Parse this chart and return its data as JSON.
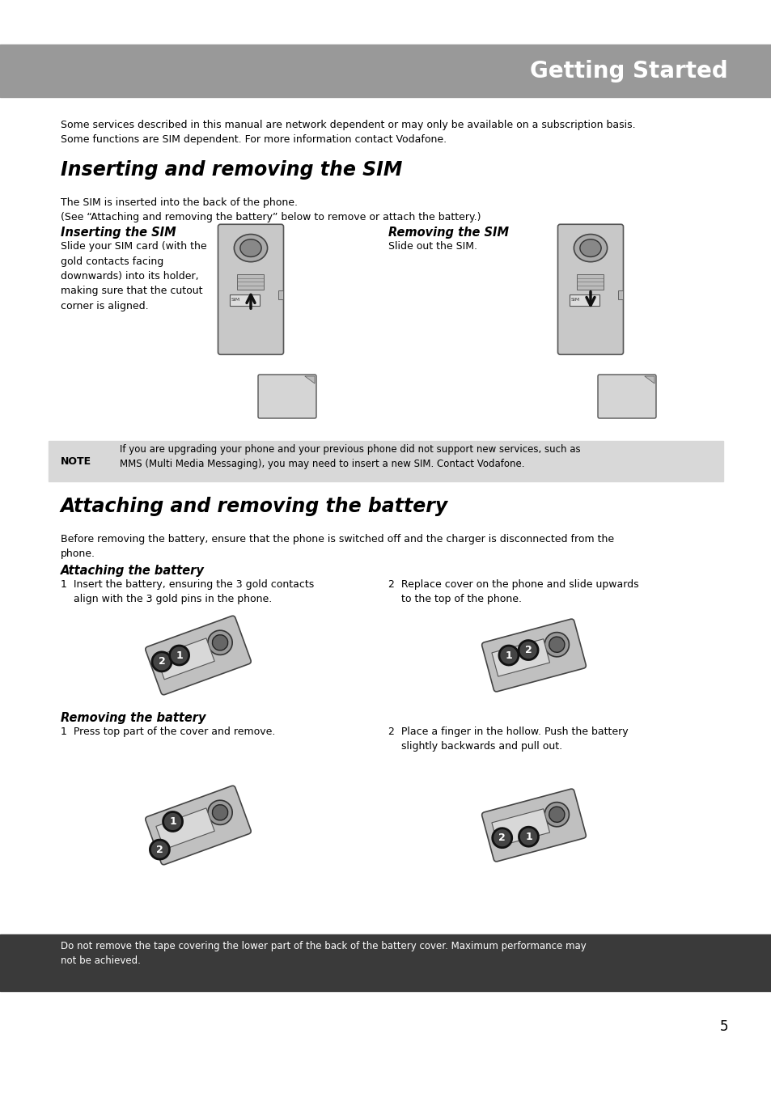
{
  "page_bg": "#ffffff",
  "header_bg": "#999999",
  "header_text": "Getting Started",
  "header_text_color": "#ffffff",
  "note_bg": "#d8d8d8",
  "footer_bg": "#3a3a3a",
  "footer_text_color": "#ffffff",
  "body_text_color": "#000000",
  "page_number": "5",
  "intro_text": "Some services described in this manual are network dependent or may only be available on a subscription basis.\nSome functions are SIM dependent. For more information contact Vodafone.",
  "section1_title": "Inserting and removing the SIM",
  "section1_intro": "The SIM is inserted into the back of the phone.\n(See “Attaching and removing the battery” below to remove or attach the battery.)",
  "inserting_sim_title": "Inserting the SIM",
  "inserting_sim_text": "Slide your SIM card (with the\ngold contacts facing\ndownwards) into its holder,\nmaking sure that the cutout\ncorner is aligned.",
  "removing_sim_title": "Removing the SIM",
  "removing_sim_text": "Slide out the SIM.",
  "note_label": "NOTE",
  "note_text": "If you are upgrading your phone and your previous phone did not support new services, such as\nMMS (Multi Media Messaging), you may need to insert a new SIM. Contact Vodafone.",
  "section2_title": "Attaching and removing the battery",
  "section2_intro": "Before removing the battery, ensure that the phone is switched off and the charger is disconnected from the\nphone.",
  "attaching_title": "Attaching the battery",
  "attaching_step1": "1  Insert the battery, ensuring the 3 gold contacts\n    align with the 3 gold pins in the phone.",
  "attaching_step2": "2  Replace cover on the phone and slide upwards\n    to the top of the phone.",
  "removing_battery_title": "Removing the battery",
  "removing_battery_step1": "1  Press top part of the cover and remove.",
  "removing_battery_step2": "2  Place a finger in the hollow. Push the battery\n    slightly backwards and pull out.",
  "footer_text": "Do not remove the tape covering the lower part of the back of the battery cover. Maximum performance may\nnot be achieved.",
  "body_fontsize": 9.0,
  "title_fontsize": 17,
  "subtitle_fontsize": 10.5,
  "header_fontsize": 20
}
